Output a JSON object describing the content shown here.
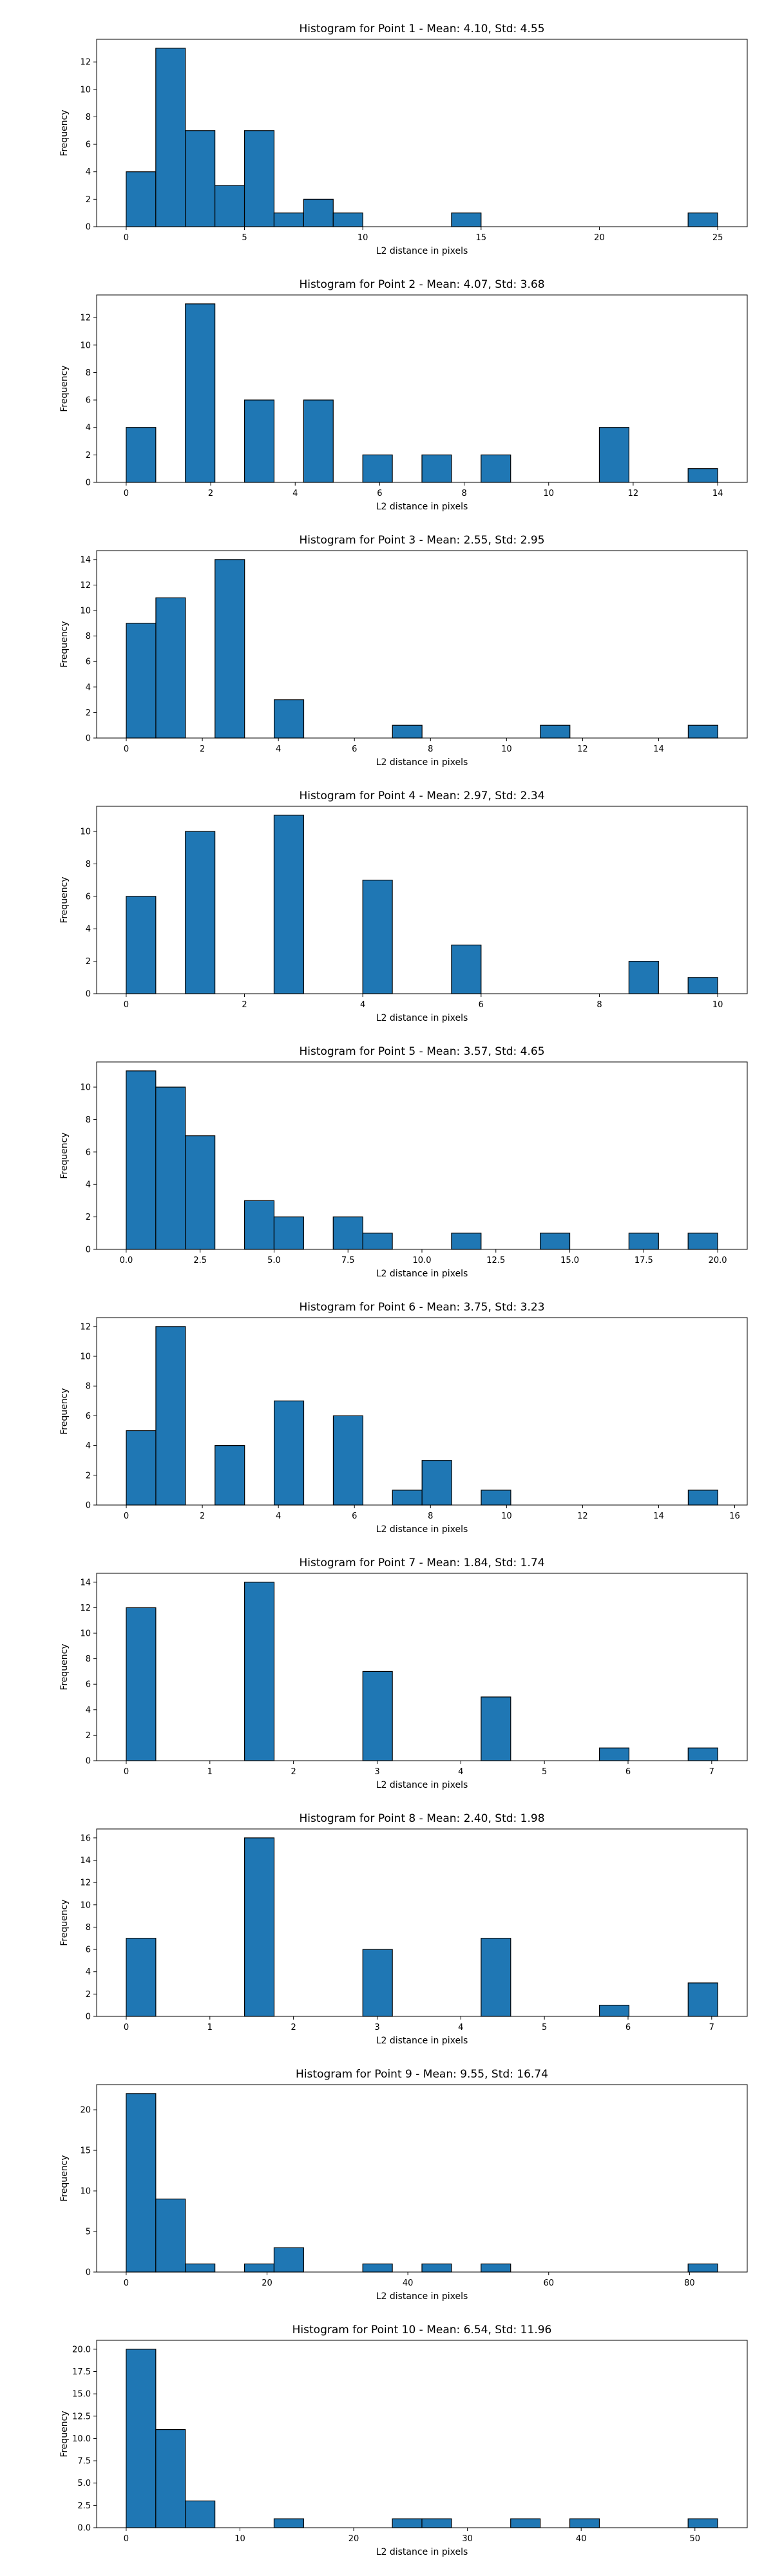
{
  "chart_data": [
    {
      "type": "bar",
      "title": "Histogram for Point 1 - Mean: 4.10, Std: 4.55",
      "xlabel": "L2 distance in pixels",
      "ylabel": "Frequency",
      "xlim": [
        -1.25,
        26.25
      ],
      "ylim": [
        0,
        13.65
      ],
      "xticks": [
        0,
        5,
        10,
        15,
        20,
        25
      ],
      "xtick_labels": [
        "0",
        "5",
        "10",
        "15",
        "20",
        "25"
      ],
      "yticks": [
        0,
        2,
        4,
        6,
        8,
        10,
        12
      ],
      "ytick_labels": [
        "0",
        "2",
        "4",
        "6",
        "8",
        "10",
        "12"
      ],
      "bin_start": 0,
      "bin_width": 1.25,
      "values": [
        4,
        13,
        7,
        3,
        7,
        1,
        2,
        1,
        0,
        0,
        0,
        1,
        0,
        0,
        0,
        0,
        0,
        0,
        0,
        1
      ]
    },
    {
      "type": "bar",
      "title": "Histogram for Point 2 - Mean: 4.07, Std: 3.68",
      "xlabel": "L2 distance in pixels",
      "ylabel": "Frequency",
      "xlim": [
        -0.7,
        14.7
      ],
      "ylim": [
        0,
        13.65
      ],
      "xticks": [
        0,
        2,
        4,
        6,
        8,
        10,
        12,
        14
      ],
      "xtick_labels": [
        "0",
        "2",
        "4",
        "6",
        "8",
        "10",
        "12",
        "14"
      ],
      "yticks": [
        0,
        2,
        4,
        6,
        8,
        10,
        12
      ],
      "ytick_labels": [
        "0",
        "2",
        "4",
        "6",
        "8",
        "10",
        "12"
      ],
      "bin_start": 0,
      "bin_width": 0.7,
      "values": [
        4,
        0,
        13,
        0,
        6,
        0,
        6,
        0,
        2,
        0,
        2,
        0,
        2,
        0,
        0,
        0,
        4,
        0,
        0,
        1
      ]
    },
    {
      "type": "bar",
      "title": "Histogram for Point 3 - Mean: 2.55, Std: 2.95",
      "xlabel": "L2 distance in pixels",
      "ylabel": "Frequency",
      "xlim": [
        -0.78,
        16.33
      ],
      "ylim": [
        0,
        14.7
      ],
      "xticks": [
        0,
        2,
        4,
        6,
        8,
        10,
        12,
        14
      ],
      "xtick_labels": [
        "0",
        "2",
        "4",
        "6",
        "8",
        "10",
        "12",
        "14"
      ],
      "yticks": [
        0,
        2,
        4,
        6,
        8,
        10,
        12,
        14
      ],
      "ytick_labels": [
        "0",
        "2",
        "4",
        "6",
        "8",
        "10",
        "12",
        "14"
      ],
      "bin_start": 0,
      "bin_width": 0.7778,
      "values": [
        9,
        11,
        0,
        14,
        0,
        3,
        0,
        0,
        0,
        1,
        0,
        0,
        0,
        0,
        1,
        0,
        0,
        0,
        0,
        1
      ]
    },
    {
      "type": "bar",
      "title": "Histogram for Point 4 - Mean: 2.97, Std: 2.34",
      "xlabel": "L2 distance in pixels",
      "ylabel": "Frequency",
      "xlim": [
        -0.5,
        10.5
      ],
      "ylim": [
        0,
        11.55
      ],
      "xticks": [
        0,
        2,
        4,
        6,
        8,
        10
      ],
      "xtick_labels": [
        "0",
        "2",
        "4",
        "6",
        "8",
        "10"
      ],
      "yticks": [
        0,
        2,
        4,
        6,
        8,
        10
      ],
      "ytick_labels": [
        "0",
        "2",
        "4",
        "6",
        "8",
        "10"
      ],
      "bin_start": 0,
      "bin_width": 0.5,
      "values": [
        6,
        0,
        10,
        0,
        0,
        11,
        0,
        0,
        7,
        0,
        0,
        3,
        0,
        0,
        0,
        0,
        0,
        2,
        0,
        1
      ]
    },
    {
      "type": "bar",
      "title": "Histogram for Point 5 - Mean: 3.57, Std: 4.65",
      "xlabel": "L2 distance in pixels",
      "ylabel": "Frequency",
      "xlim": [
        -1.0,
        21.0
      ],
      "ylim": [
        0,
        11.55
      ],
      "xticks": [
        0,
        2.5,
        5,
        7.5,
        10,
        12.5,
        15,
        17.5,
        20
      ],
      "xtick_labels": [
        "0.0",
        "2.5",
        "5.0",
        "7.5",
        "10.0",
        "12.5",
        "15.0",
        "17.5",
        "20.0"
      ],
      "yticks": [
        0,
        2,
        4,
        6,
        8,
        10
      ],
      "ytick_labels": [
        "0",
        "2",
        "4",
        "6",
        "8",
        "10"
      ],
      "bin_start": 0,
      "bin_width": 1.0,
      "values": [
        11,
        10,
        7,
        0,
        3,
        2,
        0,
        2,
        1,
        0,
        0,
        1,
        0,
        0,
        1,
        0,
        0,
        1,
        0,
        1
      ]
    },
    {
      "type": "bar",
      "title": "Histogram for Point 6 - Mean: 3.75, Std: 3.23",
      "xlabel": "L2 distance in pixels",
      "ylabel": "Frequency",
      "xlim": [
        -0.78,
        16.33
      ],
      "ylim": [
        0,
        12.6
      ],
      "xticks": [
        0,
        2,
        4,
        6,
        8,
        10,
        12,
        14,
        16
      ],
      "xtick_labels": [
        "0",
        "2",
        "4",
        "6",
        "8",
        "10",
        "12",
        "14",
        "16"
      ],
      "yticks": [
        0,
        2,
        4,
        6,
        8,
        10,
        12
      ],
      "ytick_labels": [
        "0",
        "2",
        "4",
        "6",
        "8",
        "10",
        "12"
      ],
      "bin_start": 0,
      "bin_width": 0.7778,
      "values": [
        5,
        12,
        0,
        4,
        0,
        7,
        0,
        6,
        0,
        1,
        3,
        0,
        1,
        0,
        0,
        0,
        0,
        0,
        0,
        1
      ]
    },
    {
      "type": "bar",
      "title": "Histogram for Point 7 - Mean: 1.84, Std: 1.74",
      "xlabel": "L2 distance in pixels",
      "ylabel": "Frequency",
      "xlim": [
        -0.354,
        7.425
      ],
      "ylim": [
        0,
        14.7
      ],
      "xticks": [
        0,
        1,
        2,
        3,
        4,
        5,
        6,
        7
      ],
      "xtick_labels": [
        "0",
        "1",
        "2",
        "3",
        "4",
        "5",
        "6",
        "7"
      ],
      "yticks": [
        0,
        2,
        4,
        6,
        8,
        10,
        12,
        14
      ],
      "ytick_labels": [
        "0",
        "2",
        "4",
        "6",
        "8",
        "10",
        "12",
        "14"
      ],
      "bin_start": 0,
      "bin_width": 0.3536,
      "values": [
        12,
        0,
        0,
        0,
        14,
        0,
        0,
        0,
        7,
        0,
        0,
        0,
        5,
        0,
        0,
        0,
        1,
        0,
        0,
        1
      ]
    },
    {
      "type": "bar",
      "title": "Histogram for Point 8 - Mean: 2.40, Std: 1.98",
      "xlabel": "L2 distance in pixels",
      "ylabel": "Frequency",
      "xlim": [
        -0.354,
        7.425
      ],
      "ylim": [
        0,
        16.8
      ],
      "xticks": [
        0,
        1,
        2,
        3,
        4,
        5,
        6,
        7
      ],
      "xtick_labels": [
        "0",
        "1",
        "2",
        "3",
        "4",
        "5",
        "6",
        "7"
      ],
      "yticks": [
        0,
        2,
        4,
        6,
        8,
        10,
        12,
        14,
        16
      ],
      "ytick_labels": [
        "0",
        "2",
        "4",
        "6",
        "8",
        "10",
        "12",
        "14",
        "16"
      ],
      "bin_start": 0,
      "bin_width": 0.3536,
      "values": [
        7,
        0,
        0,
        0,
        16,
        0,
        0,
        0,
        6,
        0,
        0,
        0,
        7,
        0,
        0,
        0,
        1,
        0,
        0,
        3
      ]
    },
    {
      "type": "bar",
      "title": "Histogram for Point 9 - Mean: 9.55, Std: 16.74",
      "xlabel": "L2 distance in pixels",
      "ylabel": "Frequency",
      "xlim": [
        -4.2,
        88.2
      ],
      "ylim": [
        0,
        23.1
      ],
      "xticks": [
        0,
        20,
        40,
        60,
        80
      ],
      "xtick_labels": [
        "0",
        "20",
        "40",
        "60",
        "80"
      ],
      "yticks": [
        0,
        5,
        10,
        15,
        20
      ],
      "ytick_labels": [
        "0",
        "5",
        "10",
        "15",
        "20"
      ],
      "bin_start": 0,
      "bin_width": 4.2,
      "values": [
        22,
        9,
        1,
        0,
        1,
        3,
        0,
        0,
        1,
        0,
        1,
        0,
        1,
        0,
        0,
        0,
        0,
        0,
        0,
        1
      ]
    },
    {
      "type": "bar",
      "title": "Histogram for Point 10 - Mean: 6.54, Std: 11.96",
      "xlabel": "L2 distance in pixels",
      "ylabel": "Frequency",
      "xlim": [
        -2.6,
        54.6
      ],
      "ylim": [
        0,
        21.0
      ],
      "xticks": [
        0,
        10,
        20,
        30,
        40,
        50
      ],
      "xtick_labels": [
        "0",
        "10",
        "20",
        "30",
        "40",
        "50"
      ],
      "yticks": [
        0,
        2.5,
        5,
        7.5,
        10,
        12.5,
        15,
        17.5,
        20
      ],
      "ytick_labels": [
        "0.0",
        "2.5",
        "5.0",
        "7.5",
        "10.0",
        "12.5",
        "15.0",
        "17.5",
        "20.0"
      ],
      "bin_start": 0,
      "bin_width": 2.6,
      "values": [
        20,
        11,
        3,
        0,
        0,
        1,
        0,
        0,
        0,
        1,
        1,
        0,
        0,
        1,
        0,
        1,
        0,
        0,
        0,
        1
      ]
    }
  ]
}
